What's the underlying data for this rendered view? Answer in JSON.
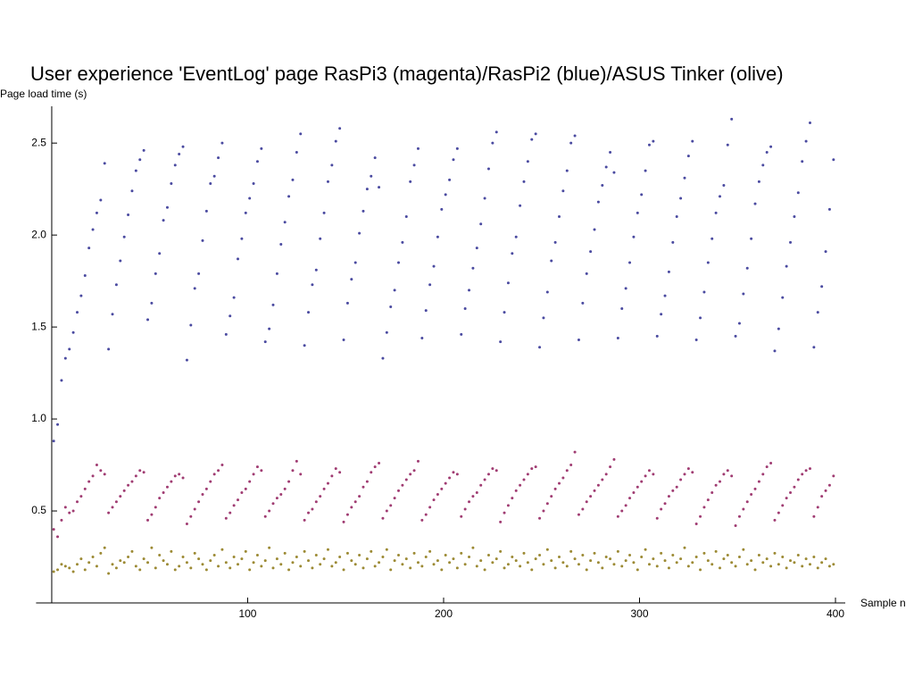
{
  "chart_data": {
    "type": "scatter",
    "title": "User experience 'EventLog' page RasPi3 (magenta)/RasPi2 (blue)/ASUS Tinker (olive)",
    "y_label": "Page load time (s)",
    "x_label": "Sample n",
    "xlim": [
      -8,
      405
    ],
    "ylim": [
      0,
      2.7
    ],
    "xticks": [
      100,
      200,
      300,
      400
    ],
    "yticks": [
      0.5,
      {
        "value": 1,
        "label": "1.0"
      },
      1.5,
      {
        "value": 2,
        "label": "2.0"
      },
      2.5
    ],
    "x": [
      1,
      3,
      5,
      7,
      9,
      11,
      13,
      15,
      17,
      19,
      21,
      23,
      25,
      27,
      29,
      31,
      33,
      35,
      37,
      39,
      41,
      43,
      45,
      47,
      49,
      51,
      53,
      55,
      57,
      59,
      61,
      63,
      65,
      67,
      69,
      71,
      73,
      75,
      77,
      79,
      81,
      83,
      85,
      87,
      89,
      91,
      93,
      95,
      97,
      99,
      101,
      103,
      105,
      107,
      109,
      111,
      113,
      115,
      117,
      119,
      121,
      123,
      125,
      127,
      129,
      131,
      133,
      135,
      137,
      139,
      141,
      143,
      145,
      147,
      149,
      151,
      153,
      155,
      157,
      159,
      161,
      163,
      165,
      167,
      169,
      171,
      173,
      175,
      177,
      179,
      181,
      183,
      185,
      187,
      189,
      191,
      193,
      195,
      197,
      199,
      201,
      203,
      205,
      207,
      209,
      211,
      213,
      215,
      217,
      219,
      221,
      223,
      225,
      227,
      229,
      231,
      233,
      235,
      237,
      239,
      241,
      243,
      245,
      247,
      249,
      251,
      253,
      255,
      257,
      259,
      261,
      263,
      265,
      267,
      269,
      271,
      273,
      275,
      277,
      279,
      281,
      283,
      285,
      287,
      289,
      291,
      293,
      295,
      297,
      299,
      301,
      303,
      305,
      307,
      309,
      311,
      313,
      315,
      317,
      319,
      321,
      323,
      325,
      327,
      329,
      331,
      333,
      335,
      337,
      339,
      341,
      343,
      345,
      347,
      349,
      351,
      353,
      355,
      357,
      359,
      361,
      363,
      365,
      367,
      369,
      371,
      373,
      375,
      377,
      379,
      381,
      383,
      385,
      387,
      389,
      391,
      393,
      395,
      397,
      399
    ],
    "series": [
      {
        "color": "#4a4aa0",
        "values": [
          0.88,
          0.97,
          1.21,
          1.33,
          1.38,
          1.47,
          1.58,
          1.67,
          1.78,
          1.93,
          2.03,
          2.12,
          2.19,
          2.39,
          1.38,
          1.57,
          1.73,
          1.86,
          1.99,
          2.11,
          2.24,
          2.35,
          2.41,
          2.46,
          1.54,
          1.63,
          1.79,
          1.9,
          2.08,
          2.15,
          2.28,
          2.38,
          2.44,
          2.48,
          1.32,
          1.51,
          1.71,
          1.79,
          1.97,
          2.13,
          2.28,
          2.32,
          2.42,
          2.5,
          1.46,
          1.56,
          1.66,
          1.87,
          1.98,
          2.12,
          2.2,
          2.28,
          2.4,
          2.47,
          1.42,
          1.49,
          1.62,
          1.79,
          1.95,
          2.07,
          2.21,
          2.3,
          2.45,
          2.55,
          1.4,
          1.58,
          1.73,
          1.81,
          1.98,
          2.12,
          2.29,
          2.38,
          2.51,
          2.58,
          1.43,
          1.63,
          1.76,
          1.85,
          2.01,
          2.13,
          2.25,
          2.32,
          2.42,
          2.26,
          1.33,
          1.47,
          1.61,
          1.7,
          1.85,
          1.96,
          2.1,
          2.29,
          2.38,
          2.47,
          1.44,
          1.59,
          1.73,
          1.83,
          1.99,
          2.14,
          2.22,
          2.3,
          2.41,
          2.47,
          1.46,
          1.6,
          1.7,
          1.82,
          1.93,
          2.06,
          2.2,
          2.36,
          2.5,
          2.56,
          1.42,
          1.58,
          1.74,
          1.9,
          1.99,
          2.16,
          2.29,
          2.4,
          2.52,
          2.55,
          1.39,
          1.55,
          1.69,
          1.86,
          1.96,
          2.1,
          2.24,
          2.35,
          2.5,
          2.54,
          1.43,
          1.63,
          1.79,
          1.91,
          2.03,
          2.18,
          2.27,
          2.37,
          2.45,
          2.34,
          1.44,
          1.6,
          1.71,
          1.85,
          1.99,
          2.12,
          2.22,
          2.35,
          2.49,
          2.51,
          1.45,
          1.57,
          1.67,
          1.8,
          1.96,
          2.1,
          2.2,
          2.31,
          2.43,
          2.51,
          1.43,
          1.55,
          1.69,
          1.85,
          1.98,
          2.12,
          2.21,
          2.27,
          2.49,
          2.63,
          1.45,
          1.52,
          1.68,
          1.82,
          1.98,
          2.17,
          2.29,
          2.38,
          2.45,
          2.48,
          1.37,
          1.49,
          1.66,
          1.83,
          1.96,
          2.1,
          2.23,
          2.4,
          2.51,
          2.61,
          1.39,
          1.58,
          1.72,
          1.91,
          2.14,
          2.41
        ]
      },
      {
        "color": "#a03c72",
        "values": [
          0.4,
          0.36,
          0.45,
          0.52,
          0.49,
          0.5,
          0.55,
          0.58,
          0.62,
          0.66,
          0.69,
          0.75,
          0.72,
          0.7,
          0.49,
          0.52,
          0.55,
          0.58,
          0.61,
          0.64,
          0.66,
          0.69,
          0.72,
          0.71,
          0.45,
          0.48,
          0.52,
          0.57,
          0.6,
          0.63,
          0.66,
          0.69,
          0.7,
          0.68,
          0.43,
          0.47,
          0.51,
          0.55,
          0.59,
          0.62,
          0.66,
          0.7,
          0.72,
          0.75,
          0.46,
          0.49,
          0.53,
          0.56,
          0.6,
          0.62,
          0.66,
          0.7,
          0.74,
          0.72,
          0.47,
          0.5,
          0.54,
          0.57,
          0.59,
          0.62,
          0.66,
          0.72,
          0.77,
          0.7,
          0.45,
          0.49,
          0.51,
          0.55,
          0.58,
          0.62,
          0.65,
          0.69,
          0.73,
          0.71,
          0.44,
          0.48,
          0.52,
          0.55,
          0.58,
          0.63,
          0.66,
          0.71,
          0.74,
          0.76,
          0.46,
          0.5,
          0.53,
          0.57,
          0.61,
          0.64,
          0.67,
          0.7,
          0.72,
          0.77,
          0.45,
          0.48,
          0.52,
          0.56,
          0.59,
          0.62,
          0.65,
          0.68,
          0.71,
          0.7,
          0.47,
          0.51,
          0.55,
          0.58,
          0.6,
          0.64,
          0.67,
          0.7,
          0.73,
          0.72,
          0.44,
          0.49,
          0.53,
          0.57,
          0.61,
          0.64,
          0.67,
          0.7,
          0.73,
          0.74,
          0.46,
          0.5,
          0.54,
          0.58,
          0.62,
          0.65,
          0.68,
          0.72,
          0.75,
          0.82,
          0.48,
          0.51,
          0.55,
          0.58,
          0.61,
          0.64,
          0.67,
          0.7,
          0.74,
          0.78,
          0.47,
          0.5,
          0.53,
          0.57,
          0.6,
          0.63,
          0.66,
          0.69,
          0.72,
          0.7,
          0.46,
          0.51,
          0.54,
          0.58,
          0.61,
          0.63,
          0.67,
          0.7,
          0.73,
          0.71,
          0.43,
          0.47,
          0.52,
          0.56,
          0.6,
          0.64,
          0.66,
          0.7,
          0.72,
          0.69,
          0.42,
          0.47,
          0.51,
          0.55,
          0.59,
          0.62,
          0.66,
          0.7,
          0.74,
          0.76,
          0.45,
          0.49,
          0.53,
          0.57,
          0.6,
          0.63,
          0.67,
          0.7,
          0.72,
          0.73,
          0.47,
          0.52,
          0.58,
          0.61,
          0.64,
          0.69
        ]
      },
      {
        "color": "#9c8a34",
        "values": [
          0.17,
          0.18,
          0.21,
          0.2,
          0.19,
          0.17,
          0.21,
          0.24,
          0.18,
          0.22,
          0.25,
          0.2,
          0.27,
          0.3,
          0.16,
          0.21,
          0.19,
          0.23,
          0.22,
          0.25,
          0.28,
          0.2,
          0.18,
          0.24,
          0.22,
          0.3,
          0.19,
          0.26,
          0.23,
          0.21,
          0.28,
          0.18,
          0.2,
          0.25,
          0.22,
          0.19,
          0.27,
          0.24,
          0.21,
          0.18,
          0.23,
          0.26,
          0.2,
          0.29,
          0.22,
          0.19,
          0.25,
          0.21,
          0.24,
          0.28,
          0.18,
          0.22,
          0.26,
          0.2,
          0.23,
          0.3,
          0.19,
          0.24,
          0.21,
          0.27,
          0.18,
          0.22,
          0.25,
          0.2,
          0.28,
          0.23,
          0.19,
          0.26,
          0.21,
          0.24,
          0.29,
          0.2,
          0.22,
          0.25,
          0.18,
          0.27,
          0.23,
          0.21,
          0.26,
          0.19,
          0.24,
          0.28,
          0.2,
          0.22,
          0.25,
          0.29,
          0.18,
          0.23,
          0.26,
          0.21,
          0.24,
          0.19,
          0.27,
          0.22,
          0.2,
          0.25,
          0.28,
          0.21,
          0.23,
          0.18,
          0.26,
          0.22,
          0.24,
          0.19,
          0.27,
          0.21,
          0.25,
          0.3,
          0.2,
          0.23,
          0.18,
          0.26,
          0.22,
          0.24,
          0.28,
          0.19,
          0.21,
          0.25,
          0.23,
          0.2,
          0.27,
          0.22,
          0.18,
          0.24,
          0.26,
          0.21,
          0.29,
          0.23,
          0.19,
          0.25,
          0.22,
          0.2,
          0.28,
          0.24,
          0.21,
          0.26,
          0.18,
          0.23,
          0.27,
          0.22,
          0.19,
          0.25,
          0.24,
          0.21,
          0.28,
          0.2,
          0.23,
          0.26,
          0.22,
          0.18,
          0.25,
          0.29,
          0.21,
          0.24,
          0.2,
          0.27,
          0.23,
          0.19,
          0.26,
          0.22,
          0.24,
          0.3,
          0.2,
          0.22,
          0.25,
          0.18,
          0.27,
          0.23,
          0.21,
          0.28,
          0.19,
          0.24,
          0.26,
          0.22,
          0.2,
          0.25,
          0.29,
          0.21,
          0.23,
          0.18,
          0.26,
          0.22,
          0.24,
          0.2,
          0.27,
          0.21,
          0.25,
          0.19,
          0.23,
          0.22,
          0.26,
          0.2,
          0.24,
          0.21,
          0.25,
          0.19,
          0.22,
          0.24,
          0.2,
          0.21
        ]
      }
    ]
  }
}
